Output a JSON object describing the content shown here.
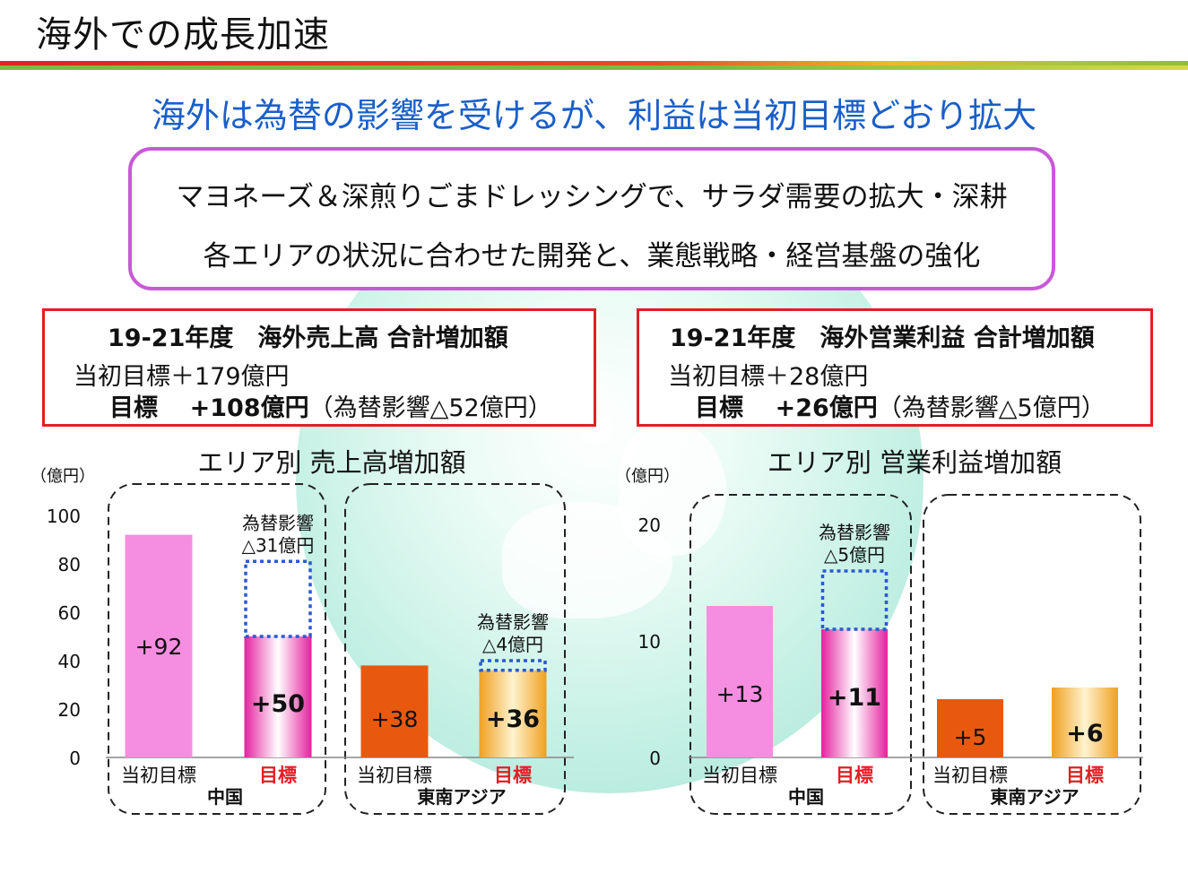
{
  "header": {
    "title": "海外での成長加速",
    "subtitle": "海外は為替の影響を受けるが、利益は当初目標どおり拡大"
  },
  "strategy": {
    "line1": "マヨネーズ＆深煎りごまドレッシングで、サラダ需要の拡大・深耕",
    "line2": "各エリアの状況に合わせた開発と、業態戦略・経営基盤の強化"
  },
  "summary_sales": {
    "heading": "19-21年度　海外売上高 合計増加額",
    "initial": "当初目標＋179億円",
    "target_label": "目標　",
    "target_value": "+108億円",
    "note": "（為替影響△52億円）"
  },
  "summary_profit": {
    "heading": "19-21年度　海外営業利益 合計増加額",
    "initial": "当初目標＋28億円",
    "target_label": "目標　",
    "target_value": "+26億円",
    "note": "（為替影響△5億円）"
  },
  "colors": {
    "initial_china": "#f58ee0",
    "target_china": "#e6219f",
    "initial_sea": "#e8590f",
    "target_sea": "#f0a020",
    "target_label": "#e31e24",
    "fx_border": "#2a5ad0"
  },
  "chart_data": [
    {
      "type": "bar",
      "title": "エリア別 売上高増加額",
      "ylabel": "（億円）",
      "ylim": [
        0,
        100
      ],
      "yticks": [
        0,
        20,
        40,
        60,
        80,
        100
      ],
      "categories": [
        "当初目標",
        "目標",
        "当初目標",
        "目標"
      ],
      "groups": [
        "中国",
        "東南アジア"
      ],
      "values": [
        92,
        50,
        38,
        36
      ],
      "labels": [
        "+92",
        "+50",
        "+38",
        "+36"
      ],
      "fx_impact": [
        null,
        31,
        null,
        4
      ],
      "fx_labels": [
        null,
        [
          "為替影響",
          "△31億円"
        ],
        null,
        [
          "為替影響",
          "△4億円"
        ]
      ]
    },
    {
      "type": "bar",
      "title": "エリア別 営業利益増加額",
      "ylabel": "（億円）",
      "ylim": [
        0,
        20
      ],
      "yticks": [
        0,
        10,
        20
      ],
      "categories": [
        "当初目標",
        "目標",
        "当初目標",
        "目標"
      ],
      "groups": [
        "中国",
        "東南アジア"
      ],
      "values": [
        13,
        11,
        5,
        6
      ],
      "labels": [
        "+13",
        "+11",
        "+5",
        "+6"
      ],
      "fx_impact": [
        null,
        5,
        null,
        null
      ],
      "fx_labels": [
        null,
        [
          "為替影響",
          "△5億円"
        ],
        null,
        null
      ]
    }
  ]
}
